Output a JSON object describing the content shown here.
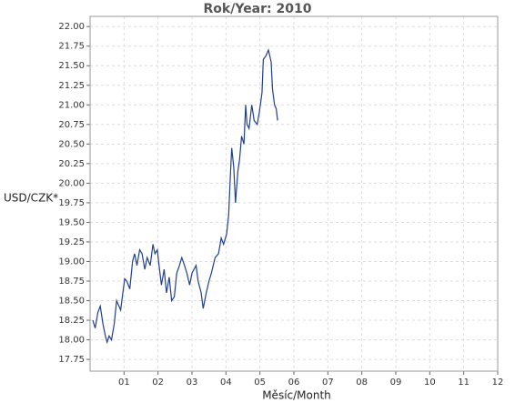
{
  "chart_data": {
    "type": "line",
    "title": "Rok/Year: 2010",
    "x_label": "Měsíc/Month",
    "y_label": "USD/CZK*",
    "x": [
      0.08,
      0.15,
      0.23,
      0.3,
      0.38,
      0.45,
      0.5,
      0.56,
      0.63,
      0.71,
      0.78,
      0.83,
      0.9,
      0.95,
      1.02,
      1.08,
      1.17,
      1.25,
      1.31,
      1.38,
      1.46,
      1.53,
      1.61,
      1.68,
      1.77,
      1.85,
      1.91,
      1.98,
      2.03,
      2.1,
      2.18,
      2.25,
      2.33,
      2.4,
      2.48,
      2.55,
      2.63,
      2.7,
      2.78,
      2.85,
      2.93,
      3.0,
      3.12,
      3.18,
      3.27,
      3.33,
      3.42,
      3.5,
      3.57,
      3.68,
      3.78,
      3.86,
      3.93,
      4.02,
      4.08,
      4.13,
      4.17,
      4.23,
      4.28,
      4.35,
      4.4,
      4.46,
      4.53,
      4.58,
      4.62,
      4.68,
      4.76,
      4.83,
      4.92,
      4.98,
      5.06,
      5.1,
      5.18,
      5.25,
      5.33,
      5.37,
      5.43,
      5.48,
      5.52
    ],
    "values": [
      18.25,
      18.15,
      18.35,
      18.43,
      18.2,
      18.05,
      17.97,
      18.05,
      18.0,
      18.2,
      18.5,
      18.45,
      18.38,
      18.55,
      18.78,
      18.75,
      18.65,
      19.0,
      19.1,
      18.95,
      19.15,
      19.1,
      18.9,
      19.05,
      18.95,
      19.22,
      19.1,
      19.15,
      18.95,
      18.7,
      18.9,
      18.6,
      18.8,
      18.5,
      18.55,
      18.85,
      18.95,
      19.05,
      18.95,
      18.85,
      18.7,
      18.85,
      18.95,
      18.75,
      18.6,
      18.4,
      18.6,
      18.75,
      18.85,
      19.05,
      19.1,
      19.3,
      19.22,
      19.35,
      19.6,
      20.1,
      20.45,
      20.2,
      19.75,
      20.15,
      20.3,
      20.6,
      20.5,
      21.0,
      20.75,
      20.7,
      21.0,
      20.8,
      20.75,
      20.9,
      21.15,
      21.58,
      21.63,
      21.7,
      21.55,
      21.2,
      21.0,
      20.95,
      20.8
    ],
    "color": "#1f3f8f",
    "xlim": [
      0,
      12
    ],
    "xticks": [
      {
        "value": 1,
        "label": "01"
      },
      {
        "value": 2,
        "label": "02"
      },
      {
        "value": 3,
        "label": "03"
      },
      {
        "value": 4,
        "label": "04"
      },
      {
        "value": 5,
        "label": "05"
      },
      {
        "value": 6,
        "label": "06"
      },
      {
        "value": 7,
        "label": "07"
      },
      {
        "value": 8,
        "label": "08"
      },
      {
        "value": 9,
        "label": "09"
      },
      {
        "value": 10,
        "label": "10"
      },
      {
        "value": 11,
        "label": "11"
      },
      {
        "value": 12,
        "label": "12"
      }
    ],
    "ylim": [
      17.6,
      22.13
    ],
    "yticks": [
      {
        "value": 17.75,
        "label": "17.75"
      },
      {
        "value": 18,
        "label": "18.00"
      },
      {
        "value": 18.25,
        "label": "18.25"
      },
      {
        "value": 18.5,
        "label": "18.50"
      },
      {
        "value": 18.75,
        "label": "18.75"
      },
      {
        "value": 19,
        "label": "19.00"
      },
      {
        "value": 19.25,
        "label": "19.25"
      },
      {
        "value": 19.5,
        "label": "19.50"
      },
      {
        "value": 19.75,
        "label": "19.75"
      },
      {
        "value": 20,
        "label": "20.00"
      },
      {
        "value": 20.25,
        "label": "20.25"
      },
      {
        "value": 20.5,
        "label": "20.50"
      },
      {
        "value": 20.75,
        "label": "20.75"
      },
      {
        "value": 21,
        "label": "21.00"
      },
      {
        "value": 21.25,
        "label": "21.25"
      },
      {
        "value": 21.5,
        "label": "21.50"
      },
      {
        "value": 21.75,
        "label": "21.75"
      },
      {
        "value": 22,
        "label": "22.00"
      }
    ],
    "grid": true
  }
}
